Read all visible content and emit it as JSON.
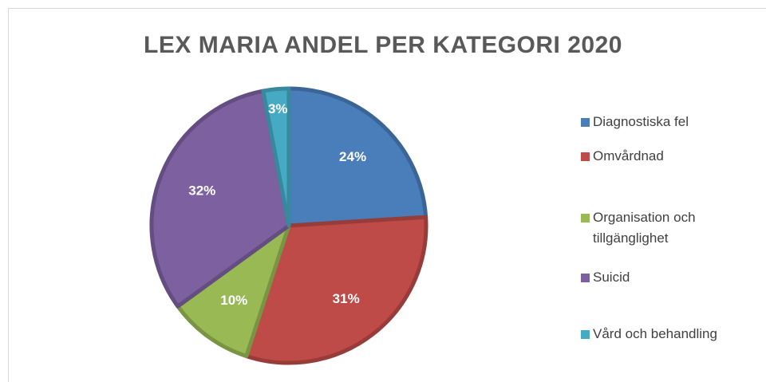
{
  "chart_data": {
    "type": "pie",
    "title": "LEX MARIA ANDEL PER KATEGORI 2020",
    "categories": [
      "Diagnostiska fel",
      "Omvårdnad",
      "Organisation och tillgänglighet",
      "Suicid",
      "Vård och behandling"
    ],
    "values": [
      24,
      31,
      10,
      32,
      3
    ],
    "value_labels": [
      "24%",
      "31%",
      "10%",
      "32%",
      "3%"
    ],
    "colors": [
      "#4a7ebb",
      "#be4b48",
      "#98b954",
      "#7d60a0",
      "#46aac5"
    ],
    "legend": "right"
  }
}
